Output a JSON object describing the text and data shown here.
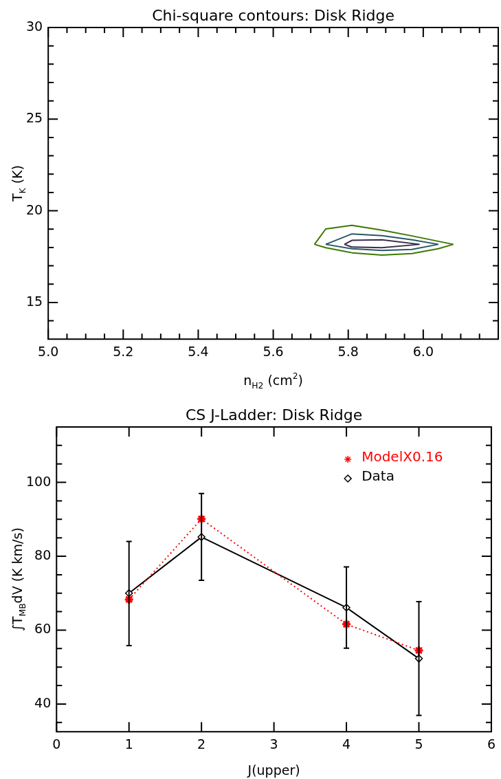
{
  "chart_data": [
    {
      "type": "line",
      "title": "Chi-square contours: Disk Ridge",
      "xlabel": "n$_{H2}$ (cm$^{2}$)",
      "ylabel": "T$_{K}$ (K)",
      "marker": "none",
      "legend": false,
      "grid": false,
      "xlim": [
        5.0,
        6.2
      ],
      "ylim": [
        13,
        30
      ],
      "xticks": [
        {
          "value": 5.0,
          "label": "5.0"
        },
        {
          "value": 5.05,
          "label": null
        },
        {
          "value": 5.1,
          "label": null
        },
        {
          "value": 5.15,
          "label": null
        },
        {
          "value": 5.2,
          "label": "5.2"
        },
        {
          "value": 5.25,
          "label": null
        },
        {
          "value": 5.3,
          "label": null
        },
        {
          "value": 5.35,
          "label": null
        },
        {
          "value": 5.4,
          "label": "5.4"
        },
        {
          "value": 5.45,
          "label": null
        },
        {
          "value": 5.5,
          "label": null
        },
        {
          "value": 5.55,
          "label": null
        },
        {
          "value": 5.6,
          "label": "5.6"
        },
        {
          "value": 5.65,
          "label": null
        },
        {
          "value": 5.7,
          "label": null
        },
        {
          "value": 5.75,
          "label": null
        },
        {
          "value": 5.8,
          "label": "5.8"
        },
        {
          "value": 5.85,
          "label": null
        },
        {
          "value": 5.9,
          "label": null
        },
        {
          "value": 5.95,
          "label": null
        },
        {
          "value": 6.0,
          "label": "6.0"
        },
        {
          "value": 6.05,
          "label": null
        },
        {
          "value": 6.1,
          "label": null
        },
        {
          "value": 6.15,
          "label": null
        }
      ],
      "yticks": [
        {
          "value": 14,
          "label": null
        },
        15,
        {
          "value": 16,
          "label": null
        },
        {
          "value": 17,
          "label": null
        },
        {
          "value": 18,
          "label": null
        },
        {
          "value": 19,
          "label": null
        },
        20,
        {
          "value": 21,
          "label": null
        },
        {
          "value": 22,
          "label": null
        },
        {
          "value": 23,
          "label": null
        },
        {
          "value": 24,
          "label": null
        },
        25,
        {
          "value": 26,
          "label": null
        },
        {
          "value": 27,
          "label": null
        },
        {
          "value": 28,
          "label": null
        },
        {
          "value": 29,
          "label": null
        },
        30
      ],
      "series": [
        {
          "color": "#3c7800",
          "line_style": "solid",
          "x": [
            5.71,
            5.74,
            5.81,
            5.89,
            5.97,
            6.08
          ],
          "values": [
            18.17,
            19.01,
            19.21,
            18.94,
            18.63,
            18.17
          ]
        },
        {
          "color": "#3c7800",
          "line_style": "solid",
          "x": [
            5.71,
            5.74,
            5.81,
            5.89,
            5.97,
            6.04,
            6.08
          ],
          "values": [
            18.17,
            17.99,
            17.71,
            17.58,
            17.67,
            17.93,
            18.17
          ]
        },
        {
          "color": "#255866",
          "line_style": "solid",
          "x": [
            5.74,
            5.81,
            5.89,
            5.97,
            6.04
          ],
          "values": [
            18.17,
            18.74,
            18.64,
            18.42,
            18.17
          ]
        },
        {
          "color": "#255866",
          "line_style": "solid",
          "x": [
            5.74,
            5.81,
            5.89,
            5.97,
            6.04
          ],
          "values": [
            18.17,
            17.93,
            17.84,
            17.89,
            18.17
          ]
        },
        {
          "color": "#3a2c48",
          "line_style": "solid",
          "x": [
            5.79,
            5.81,
            5.89,
            5.99
          ],
          "values": [
            18.17,
            18.39,
            18.42,
            18.17
          ]
        },
        {
          "color": "#3a2c48",
          "line_style": "solid",
          "x": [
            5.79,
            5.81,
            5.89,
            5.99
          ],
          "values": [
            18.17,
            18.02,
            17.99,
            18.17
          ]
        }
      ]
    },
    {
      "type": "line",
      "title": "CS J-Ladder: Disk Ridge",
      "xlabel": "J(upper)",
      "ylabel": "∫T$_{MB}$dV (K km/s)",
      "legend": "top right",
      "grid": false,
      "xlim": [
        0,
        6
      ],
      "ylim": [
        32.5,
        115
      ],
      "xticks": [
        0,
        1,
        2,
        3,
        4,
        5,
        6
      ],
      "yticks": [
        {
          "value": 35,
          "label": null
        },
        40,
        {
          "value": 45,
          "label": null
        },
        {
          "value": 50,
          "label": null
        },
        {
          "value": 55,
          "label": null
        },
        60,
        {
          "value": 65,
          "label": null
        },
        {
          "value": 70,
          "label": null
        },
        {
          "value": 75,
          "label": null
        },
        80,
        {
          "value": 85,
          "label": null
        },
        {
          "value": 90,
          "label": null
        },
        {
          "value": 95,
          "label": null
        },
        100,
        {
          "value": 105,
          "label": null
        },
        {
          "value": 110,
          "label": null
        }
      ],
      "x": [
        1,
        2,
        4,
        5
      ],
      "series": [
        {
          "name": "ModelX0.16",
          "color": "#ff0000",
          "marker": "cross",
          "line_style": "dotted",
          "values": [
            68.3,
            90.1,
            61.6,
            54.5
          ]
        },
        {
          "name": "Data",
          "color": "#000000",
          "marker": "diamond",
          "line_style": "solid",
          "values": [
            70,
            85.2,
            66.1,
            52.3
          ],
          "errors": [
            [
              55.8,
              84
            ],
            [
              73.5,
              97
            ],
            [
              55.1,
              77.1
            ],
            [
              36.9,
              67.7
            ]
          ]
        }
      ]
    }
  ]
}
